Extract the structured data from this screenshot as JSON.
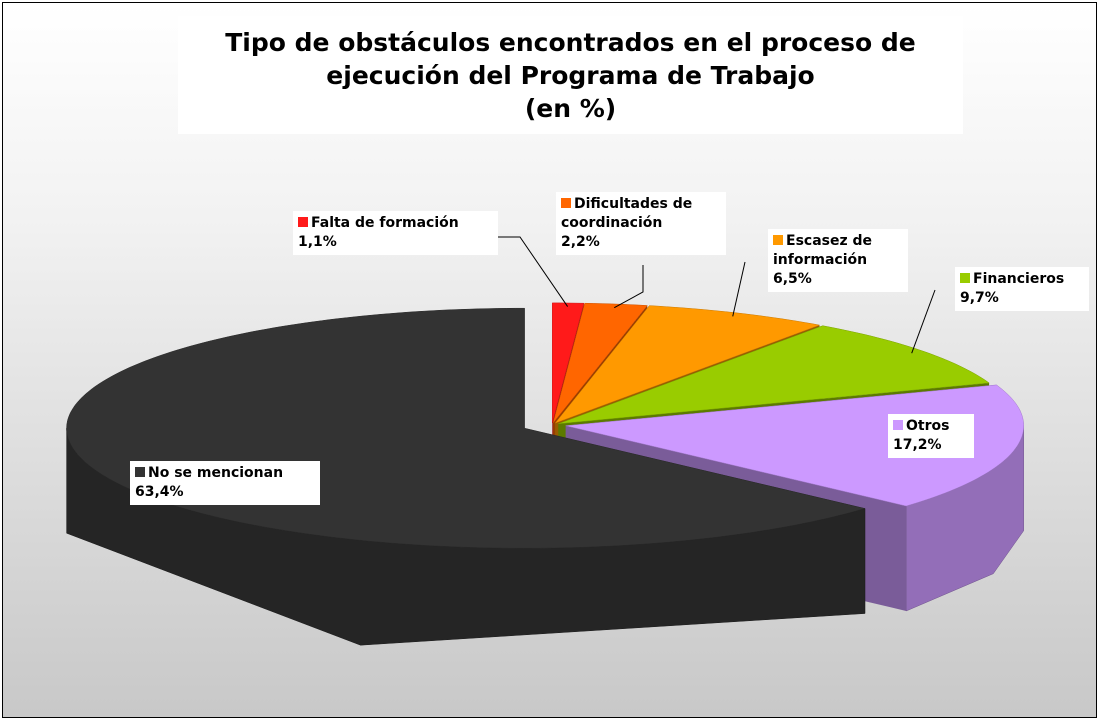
{
  "chart_data": {
    "type": "pie",
    "title": [
      "Tipo de obstáculos encontrados en el proceso de",
      "ejecución del Programa de Trabajo",
      "(en %)"
    ],
    "categories": [
      "Falta de formación",
      "Dificultades de coordinación",
      "Escasez de información",
      "Financieros",
      "Otros",
      "No se mencionan"
    ],
    "values": [
      1.1,
      2.2,
      6.5,
      9.7,
      17.2,
      63.4
    ],
    "value_labels": [
      "1,1%",
      "2,2%",
      "6,5%",
      "9,7%",
      "17,2%",
      "63,4%"
    ],
    "colors": [
      "#ff1a1a",
      "#ff6600",
      "#ff9900",
      "#99cc00",
      "#cc99ff",
      "#333333"
    ]
  }
}
